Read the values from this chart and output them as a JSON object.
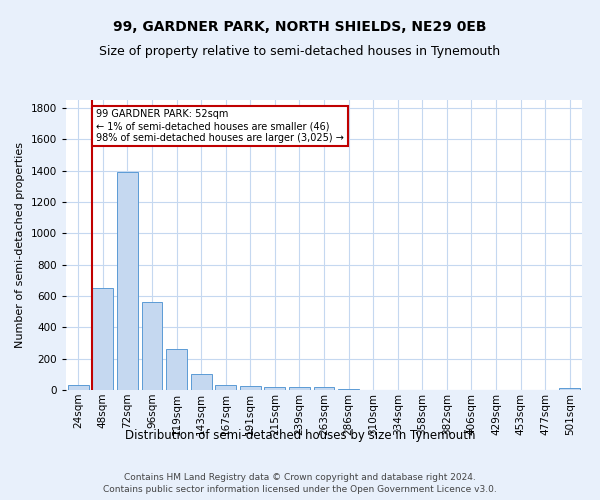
{
  "title1": "99, GARDNER PARK, NORTH SHIELDS, NE29 0EB",
  "title2": "Size of property relative to semi-detached houses in Tynemouth",
  "xlabel": "Distribution of semi-detached houses by size in Tynemouth",
  "ylabel": "Number of semi-detached properties",
  "categories": [
    "24sqm",
    "48sqm",
    "72sqm",
    "96sqm",
    "119sqm",
    "143sqm",
    "167sqm",
    "191sqm",
    "215sqm",
    "239sqm",
    "263sqm",
    "286sqm",
    "310sqm",
    "334sqm",
    "358sqm",
    "382sqm",
    "406sqm",
    "429sqm",
    "453sqm",
    "477sqm",
    "501sqm"
  ],
  "values": [
    30,
    650,
    1390,
    560,
    260,
    100,
    35,
    25,
    20,
    18,
    16,
    5,
    0,
    0,
    0,
    0,
    0,
    0,
    0,
    0,
    10
  ],
  "bar_color": "#c5d8f0",
  "bar_edge_color": "#5b9bd5",
  "highlight_bar_index": 1,
  "highlight_color": "#c00000",
  "annotation_text": "99 GARDNER PARK: 52sqm\n← 1% of semi-detached houses are smaller (46)\n98% of semi-detached houses are larger (3,025) →",
  "annotation_box_color": "white",
  "annotation_box_edgecolor": "#c00000",
  "ylim": [
    0,
    1850
  ],
  "yticks": [
    0,
    200,
    400,
    600,
    800,
    1000,
    1200,
    1400,
    1600,
    1800
  ],
  "footer1": "Contains HM Land Registry data © Crown copyright and database right 2024.",
  "footer2": "Contains public sector information licensed under the Open Government Licence v3.0.",
  "bg_color": "#e8f0fb",
  "plot_bg_color": "#ffffff",
  "grid_color": "#c5d8f0",
  "title1_fontsize": 10,
  "title2_fontsize": 9,
  "xlabel_fontsize": 8.5,
  "ylabel_fontsize": 8,
  "tick_fontsize": 7.5,
  "footer_fontsize": 6.5
}
